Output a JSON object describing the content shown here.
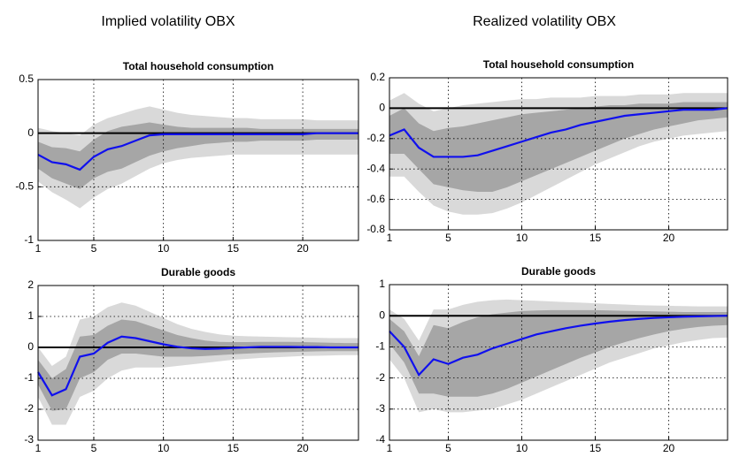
{
  "headers": [
    "Implied volatility OBX",
    "Realized volatility OBX"
  ],
  "chart_data": [
    {
      "type": "line",
      "title": "Total household consumption",
      "x": [
        1,
        2,
        3,
        4,
        5,
        6,
        7,
        8,
        9,
        10,
        11,
        12,
        13,
        14,
        15,
        16,
        17,
        18,
        19,
        20,
        21,
        22,
        23,
        24
      ],
      "xlim": [
        1,
        24
      ],
      "xticks": [
        1,
        5,
        10,
        15,
        20
      ],
      "ylim": [
        -1,
        0.5
      ],
      "yticks": [
        -1,
        -0.5,
        0,
        0.5
      ],
      "grid": true,
      "reference_line": 0,
      "bands": [
        {
          "color": "#d9d9d9",
          "lower": [
            -0.45,
            -0.55,
            -0.62,
            -0.7,
            -0.6,
            -0.52,
            -0.47,
            -0.4,
            -0.33,
            -0.28,
            -0.25,
            -0.23,
            -0.22,
            -0.21,
            -0.2,
            -0.2,
            -0.2,
            -0.2,
            -0.2,
            -0.2,
            -0.2,
            -0.2,
            -0.2,
            -0.2
          ],
          "upper": [
            0.05,
            0.02,
            0.0,
            -0.02,
            0.08,
            0.14,
            0.18,
            0.22,
            0.25,
            0.22,
            0.19,
            0.17,
            0.16,
            0.15,
            0.14,
            0.14,
            0.13,
            0.13,
            0.13,
            0.13,
            0.12,
            0.12,
            0.12,
            0.12
          ]
        },
        {
          "color": "#a6a6a6",
          "lower": [
            -0.33,
            -0.42,
            -0.47,
            -0.52,
            -0.42,
            -0.36,
            -0.33,
            -0.27,
            -0.21,
            -0.17,
            -0.14,
            -0.12,
            -0.1,
            -0.09,
            -0.08,
            -0.08,
            -0.07,
            -0.07,
            -0.07,
            -0.07,
            -0.06,
            -0.06,
            -0.06,
            -0.06
          ],
          "upper": [
            -0.08,
            -0.13,
            -0.14,
            -0.17,
            -0.06,
            0.02,
            0.06,
            0.08,
            0.1,
            0.08,
            0.06,
            0.05,
            0.05,
            0.05,
            0.05,
            0.05,
            0.04,
            0.04,
            0.04,
            0.04,
            0.04,
            0.04,
            0.04,
            0.04
          ]
        }
      ],
      "series": [
        {
          "color": "#1010ee",
          "values": [
            -0.2,
            -0.27,
            -0.29,
            -0.34,
            -0.22,
            -0.15,
            -0.12,
            -0.07,
            -0.02,
            -0.01,
            -0.01,
            -0.01,
            -0.01,
            -0.01,
            -0.01,
            -0.01,
            -0.01,
            -0.01,
            -0.01,
            -0.01,
            0,
            0,
            0,
            0
          ]
        }
      ]
    },
    {
      "type": "line",
      "title": "Total household consumption",
      "x": [
        1,
        2,
        3,
        4,
        5,
        6,
        7,
        8,
        9,
        10,
        11,
        12,
        13,
        14,
        15,
        16,
        17,
        18,
        19,
        20,
        21,
        22,
        23,
        24
      ],
      "xlim": [
        1,
        24
      ],
      "xticks": [
        1,
        5,
        10,
        15,
        20
      ],
      "ylim": [
        -0.8,
        0.2
      ],
      "yticks": [
        -0.8,
        -0.6,
        -0.4,
        -0.2,
        0,
        0.2
      ],
      "grid": true,
      "reference_line": 0,
      "bands": [
        {
          "color": "#d9d9d9",
          "lower": [
            -0.45,
            -0.45,
            -0.55,
            -0.64,
            -0.68,
            -0.7,
            -0.7,
            -0.69,
            -0.66,
            -0.62,
            -0.57,
            -0.52,
            -0.47,
            -0.42,
            -0.37,
            -0.33,
            -0.29,
            -0.25,
            -0.22,
            -0.2,
            -0.18,
            -0.17,
            -0.16,
            -0.15
          ],
          "upper": [
            0.05,
            0.1,
            0.03,
            -0.02,
            0.0,
            0.02,
            0.03,
            0.04,
            0.05,
            0.06,
            0.06,
            0.07,
            0.07,
            0.07,
            0.08,
            0.08,
            0.08,
            0.09,
            0.09,
            0.09,
            0.1,
            0.1,
            0.1,
            0.1
          ]
        },
        {
          "color": "#a6a6a6",
          "lower": [
            -0.3,
            -0.3,
            -0.4,
            -0.5,
            -0.52,
            -0.54,
            -0.55,
            -0.55,
            -0.52,
            -0.48,
            -0.44,
            -0.4,
            -0.36,
            -0.32,
            -0.28,
            -0.24,
            -0.2,
            -0.17,
            -0.14,
            -0.12,
            -0.1,
            -0.08,
            -0.07,
            -0.06
          ],
          "upper": [
            -0.05,
            0.0,
            -0.1,
            -0.15,
            -0.13,
            -0.12,
            -0.1,
            -0.08,
            -0.06,
            -0.04,
            -0.03,
            -0.02,
            -0.01,
            0,
            0.01,
            0.02,
            0.02,
            0.03,
            0.03,
            0.03,
            0.04,
            0.04,
            0.04,
            0.04
          ]
        }
      ],
      "series": [
        {
          "color": "#1010ee",
          "values": [
            -0.18,
            -0.14,
            -0.26,
            -0.32,
            -0.32,
            -0.32,
            -0.31,
            -0.28,
            -0.25,
            -0.22,
            -0.19,
            -0.16,
            -0.14,
            -0.11,
            -0.09,
            -0.07,
            -0.05,
            -0.04,
            -0.03,
            -0.02,
            -0.01,
            -0.01,
            -0.01,
            0
          ]
        }
      ]
    },
    {
      "type": "line",
      "title": "Durable goods",
      "x": [
        1,
        2,
        3,
        4,
        5,
        6,
        7,
        8,
        9,
        10,
        11,
        12,
        13,
        14,
        15,
        16,
        17,
        18,
        19,
        20,
        21,
        22,
        23,
        24
      ],
      "xlim": [
        1,
        24
      ],
      "xticks": [
        1,
        5,
        10,
        15,
        20
      ],
      "ylim": [
        -3,
        2
      ],
      "yticks": [
        -3,
        -2,
        -1,
        0,
        1,
        2
      ],
      "grid": true,
      "reference_line": 0,
      "bands": [
        {
          "color": "#d9d9d9",
          "lower": [
            -1.6,
            -2.5,
            -2.5,
            -1.6,
            -1.4,
            -1.0,
            -0.75,
            -0.65,
            -0.65,
            -0.65,
            -0.6,
            -0.55,
            -0.5,
            -0.45,
            -0.4,
            -0.37,
            -0.34,
            -0.32,
            -0.3,
            -0.28,
            -0.27,
            -0.26,
            -0.25,
            -0.25
          ],
          "upper": [
            0.0,
            -0.6,
            -0.3,
            0.9,
            1.0,
            1.3,
            1.45,
            1.35,
            1.15,
            0.95,
            0.75,
            0.6,
            0.5,
            0.42,
            0.38,
            0.36,
            0.35,
            0.34,
            0.33,
            0.32,
            0.31,
            0.3,
            0.3,
            0.3
          ]
        },
        {
          "color": "#a6a6a6",
          "lower": [
            -1.2,
            -2.05,
            -2.0,
            -1.0,
            -0.8,
            -0.4,
            -0.2,
            -0.2,
            -0.25,
            -0.3,
            -0.3,
            -0.3,
            -0.28,
            -0.25,
            -0.22,
            -0.2,
            -0.18,
            -0.16,
            -0.15,
            -0.14,
            -0.13,
            -0.12,
            -0.12,
            -0.12
          ],
          "upper": [
            -0.4,
            -1.0,
            -0.7,
            0.35,
            0.4,
            0.7,
            0.9,
            0.85,
            0.7,
            0.55,
            0.4,
            0.3,
            0.22,
            0.18,
            0.17,
            0.17,
            0.18,
            0.18,
            0.18,
            0.17,
            0.16,
            0.15,
            0.14,
            0.14
          ]
        }
      ],
      "series": [
        {
          "color": "#1010ee",
          "values": [
            -0.8,
            -1.55,
            -1.35,
            -0.3,
            -0.2,
            0.15,
            0.35,
            0.3,
            0.2,
            0.1,
            0.02,
            -0.03,
            -0.05,
            -0.04,
            -0.02,
            0,
            0.02,
            0.02,
            0.02,
            0.01,
            0.01,
            0,
            0,
            0
          ]
        }
      ]
    },
    {
      "type": "line",
      "title": "Durable goods",
      "x": [
        1,
        2,
        3,
        4,
        5,
        6,
        7,
        8,
        9,
        10,
        11,
        12,
        13,
        14,
        15,
        16,
        17,
        18,
        19,
        20,
        21,
        22,
        23,
        24
      ],
      "xlim": [
        1,
        24
      ],
      "xticks": [
        1,
        5,
        10,
        15,
        20
      ],
      "ylim": [
        -4,
        1
      ],
      "yticks": [
        -4,
        -3,
        -2,
        -1,
        0,
        1
      ],
      "grid": true,
      "reference_line": 0,
      "bands": [
        {
          "color": "#d9d9d9",
          "lower": [
            -1.4,
            -2.0,
            -3.1,
            -3.0,
            -3.1,
            -3.1,
            -3.05,
            -3.0,
            -2.85,
            -2.7,
            -2.5,
            -2.3,
            -2.1,
            -1.9,
            -1.7,
            -1.5,
            -1.35,
            -1.2,
            -1.05,
            -0.95,
            -0.85,
            -0.78,
            -0.72,
            -0.7
          ],
          "upper": [
            0.2,
            -0.1,
            -0.8,
            0.2,
            0.2,
            0.35,
            0.45,
            0.5,
            0.52,
            0.5,
            0.48,
            0.46,
            0.44,
            0.42,
            0.4,
            0.38,
            0.36,
            0.34,
            0.33,
            0.32,
            0.31,
            0.3,
            0.3,
            0.3
          ]
        },
        {
          "color": "#a6a6a6",
          "lower": [
            -0.9,
            -1.5,
            -2.5,
            -2.5,
            -2.6,
            -2.6,
            -2.6,
            -2.5,
            -2.35,
            -2.15,
            -1.95,
            -1.75,
            -1.55,
            -1.35,
            -1.18,
            -1.0,
            -0.85,
            -0.72,
            -0.6,
            -0.5,
            -0.42,
            -0.36,
            -0.32,
            -0.3
          ],
          "upper": [
            -0.1,
            -0.5,
            -1.3,
            -0.3,
            -0.4,
            -0.2,
            -0.05,
            0.05,
            0.1,
            0.15,
            0.17,
            0.18,
            0.18,
            0.18,
            0.18,
            0.17,
            0.16,
            0.15,
            0.14,
            0.13,
            0.12,
            0.12,
            0.12,
            0.12
          ]
        }
      ],
      "series": [
        {
          "color": "#1010ee",
          "values": [
            -0.5,
            -1.0,
            -1.9,
            -1.4,
            -1.55,
            -1.35,
            -1.25,
            -1.05,
            -0.9,
            -0.75,
            -0.6,
            -0.5,
            -0.4,
            -0.32,
            -0.25,
            -0.19,
            -0.14,
            -0.1,
            -0.07,
            -0.05,
            -0.03,
            -0.02,
            -0.01,
            0
          ]
        }
      ]
    }
  ]
}
